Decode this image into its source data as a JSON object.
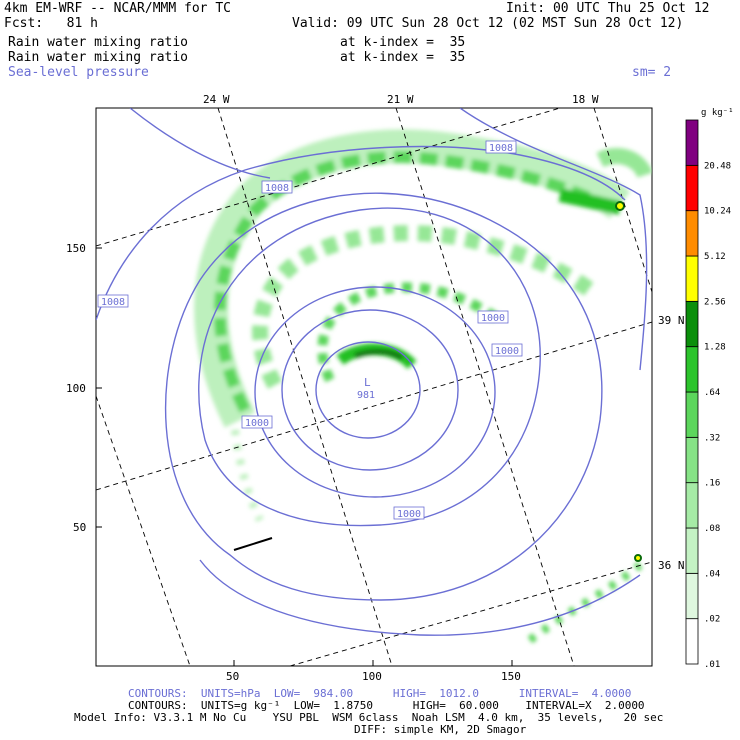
{
  "header": {
    "line1_left": "4km EM-WRF -- NCAR/MMM for TC",
    "line1_right": "Init: 00 UTC Thu 25 Oct 12",
    "line2_left": "Fcst:   81 h",
    "line2_right": "Valid: 09 UTC Sun 28 Oct 12 (02 MST Sun 28 Oct 12)",
    "field1_name": "Rain water mixing ratio",
    "field1_level": "at k-index =  35",
    "field2_name": "Rain water mixing ratio",
    "field2_level": "at k-index =  35",
    "field3_name": "Sea-level pressure",
    "smoothing": "sm= 2"
  },
  "map": {
    "lon_labels": [
      "24 W",
      "21 W",
      "18 W"
    ],
    "lat_labels": [
      "39 N",
      "36 N"
    ],
    "x_ticks": [
      "50",
      "100",
      "150"
    ],
    "y_ticks": [
      "150",
      "100",
      "50"
    ],
    "low_label": "L",
    "low_value": "981",
    "isobar_labels": [
      "1008",
      "1008",
      "1008",
      "1000",
      "1000",
      "1000",
      "1000"
    ],
    "contour_color": "#6b6fd4",
    "rain_colors": [
      "#dff7df",
      "#bdf0bd",
      "#96e796",
      "#5cd65c",
      "#22c022",
      "#0a9a0a",
      "#0a6a0a"
    ]
  },
  "colorbar": {
    "unit": "g kg⁻¹",
    "labels": [
      "20.48",
      "10.24",
      "5.12",
      "2.56",
      "1.28",
      ".64",
      ".32",
      ".16",
      ".08",
      ".04",
      ".02",
      ".01"
    ],
    "colors": [
      "#ffffff",
      "#dff7df",
      "#c4f2c4",
      "#a6eba6",
      "#86e386",
      "#5cd65c",
      "#2cc42c",
      "#0b8f0b",
      "#ffff00",
      "#ff8c00",
      "#ff0000",
      "#800080"
    ]
  },
  "footer": {
    "slp_contours": "CONTOURS:  UNITS=hPa  LOW=  984.00      HIGH=  1012.0      INTERVAL=  4.0000",
    "rain_contours": "CONTOURS:  UNITS=g kg⁻¹  LOW=  1.8750      HIGH=  60.000    INTERVAL=X  2.0000",
    "model_info": "Model Info: V3.3.1 M No Cu    YSU PBL  WSM 6class  Noah LSM  4.0 km,  35 levels,   20 sec",
    "diff_info": "DIFF: simple KM, 2D Smagor"
  }
}
